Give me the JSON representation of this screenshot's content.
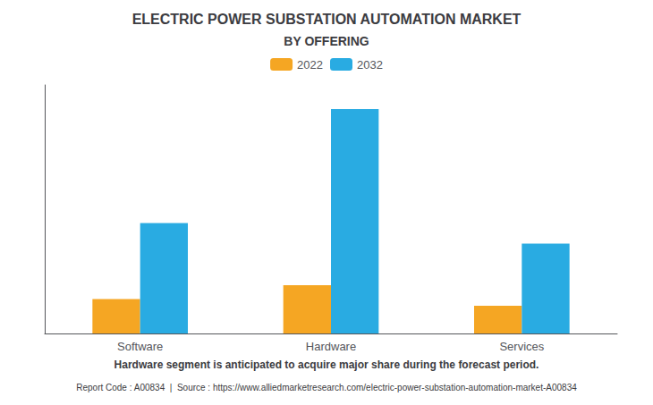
{
  "chart_data": {
    "type": "bar",
    "title": "ELECTRIC POWER SUBSTATION AUTOMATION MARKET",
    "subtitle": "BY OFFERING",
    "categories": [
      "Software",
      "Hardware",
      "Services"
    ],
    "series": [
      {
        "name": "2022",
        "color": "#F5A623",
        "values": [
          1.0,
          1.4,
          0.8
        ]
      },
      {
        "name": "2032",
        "color": "#29ABE2",
        "values": [
          3.2,
          6.5,
          2.6
        ]
      }
    ],
    "ylim": [
      0,
      7.2
    ],
    "yticks": [],
    "grid": false,
    "tick_labels": "x",
    "legend": "upper center",
    "annotations": [
      "Hardware segment is anticipated to acquire major share during the forecast period.",
      "Report Code : A00834  |  Source : https://www.alliedmarketresearch.com/electric-power-substation-automation-market-A00834"
    ]
  }
}
